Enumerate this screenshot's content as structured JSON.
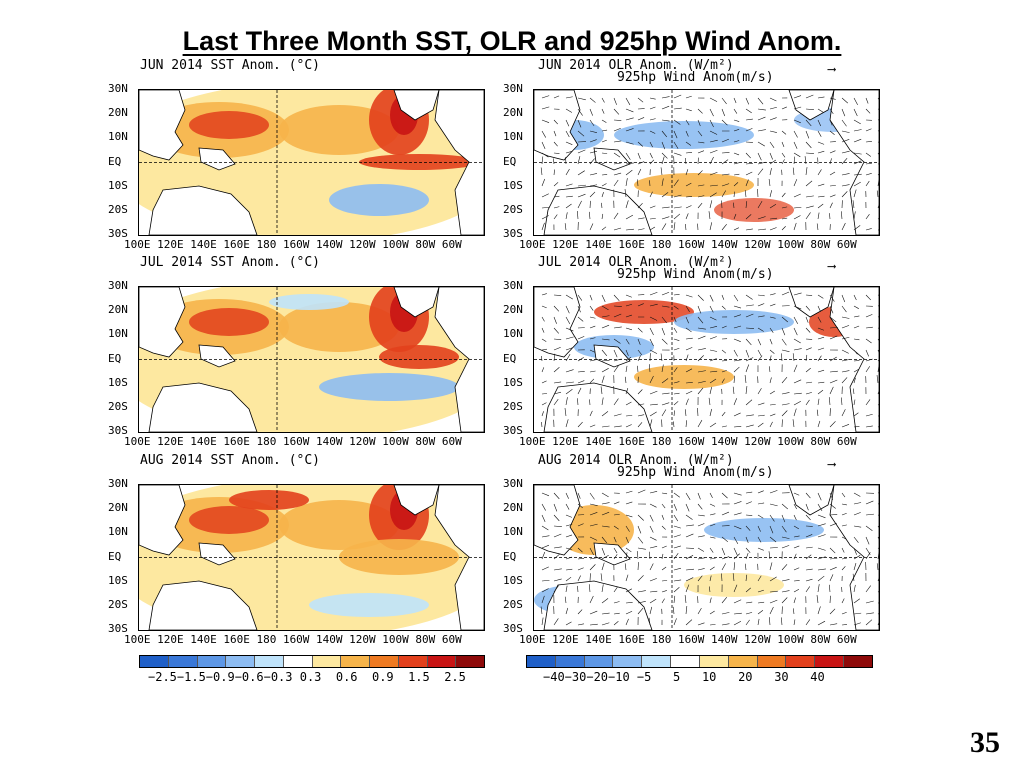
{
  "title": "Last Three Month SST, OLR and 925hp Wind Anom.",
  "page_number": "35",
  "lat_labels": [
    "30N",
    "20N",
    "10N",
    "EQ",
    "10S",
    "20S",
    "30S"
  ],
  "lon_labels": [
    "100E",
    "120E",
    "140E",
    "160E",
    "180",
    "160W",
    "140W",
    "120W",
    "100W",
    "80W",
    "60W"
  ],
  "sst_panels": [
    {
      "title": "JUN 2014 SST Anom. (°C)"
    },
    {
      "title": "JUL 2014 SST Anom. (°C)"
    },
    {
      "title": "AUG 2014 SST Anom. (°C)"
    }
  ],
  "olr_panels": [
    {
      "title": "JUN 2014 OLR Anom. (W/m²)",
      "subtitle": "925hp Wind Anom(m/s)"
    },
    {
      "title": "JUL 2014 OLR Anom. (W/m²)",
      "subtitle": "925hp Wind Anom(m/s)"
    },
    {
      "title": "AUG 2014 OLR Anom. (W/m²)",
      "subtitle": "925hp Wind Anom(m/s)"
    }
  ],
  "sst_colorbar": {
    "labels": "−2.5−1.5−0.9−0.6−0.3 0.3  0.6  0.9  1.5  2.5",
    "colors": [
      "#1f5fc8",
      "#3a78d8",
      "#5d97e6",
      "#8dbcf2",
      "#bfe3fb",
      "#ffffff",
      "#fde8a0",
      "#f6b44a",
      "#ee7a22",
      "#e2401c",
      "#c81414",
      "#8e0a0a"
    ]
  },
  "olr_colorbar": {
    "labels": "−40−30−20−10 −5   5   10   20   30   40",
    "colors": [
      "#1f5fc8",
      "#3a78d8",
      "#5d97e6",
      "#8dbcf2",
      "#bfe3fb",
      "#ffffff",
      "#fde8a0",
      "#f6b44a",
      "#ee7a22",
      "#e2401c",
      "#c81414",
      "#8e0a0a"
    ]
  },
  "colors": {
    "land": "#ffffff",
    "warm_strong": "#e2401c",
    "warm": "#f6b44a",
    "warm_light": "#fde8a0",
    "cool_light": "#bfe3fb",
    "cool": "#8dbcf2",
    "cool_strong": "#3a78d8",
    "deep_red": "#c81414"
  }
}
